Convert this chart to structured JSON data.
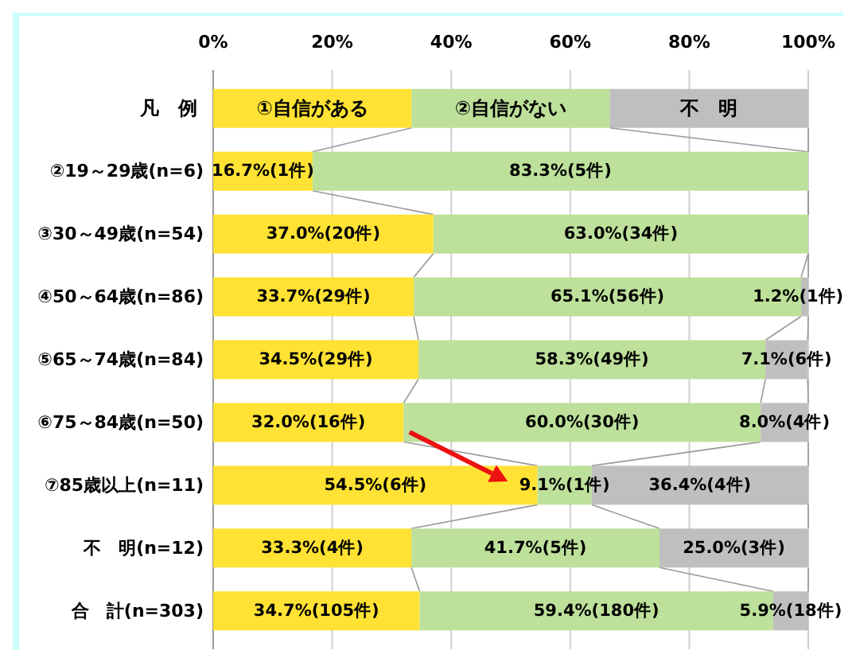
{
  "chart_data": {
    "type": "bar",
    "orientation": "horizontal",
    "stacked": true,
    "legend": "top",
    "legend_title": "凡　例",
    "grid": "x",
    "categories": [
      "②19～29歳(n=6)",
      "③30～49歳(n=54)",
      "④50～64歳(n=86)",
      "⑤65～74歳(n=84)",
      "⑥75～84歳(n=50)",
      "⑦85歳以上(n=11)",
      "不　明(n=12)",
      "合　計(n=303)"
    ],
    "xlim": [
      0,
      100
    ],
    "xticks": [
      {
        "value": 0,
        "label": "0%"
      },
      {
        "value": 20,
        "label": "20%"
      },
      {
        "value": 40,
        "label": "40%"
      },
      {
        "value": 60,
        "label": "60%"
      },
      {
        "value": 80,
        "label": "80%"
      },
      {
        "value": 100,
        "label": "100%"
      }
    ],
    "series": [
      {
        "name": "①自信がある",
        "color": "#ffe233",
        "values": [
          16.7,
          37.0,
          33.7,
          34.5,
          32.0,
          54.5,
          33.3,
          34.7
        ],
        "value_labels": [
          "16.7%(1件)",
          "37.0%(20件)",
          "33.7%(29件)",
          "34.5%(29件)",
          "32.0%(16件)",
          "54.5%(6件)",
          "33.3%(4件)",
          "34.7%(105件)"
        ]
      },
      {
        "name": "②自信がない",
        "color": "#bde09a",
        "values": [
          83.3,
          63.0,
          65.1,
          58.3,
          60.0,
          9.1,
          41.7,
          59.4
        ],
        "value_labels": [
          "83.3%(5件)",
          "63.0%(34件)",
          "65.1%(56件)",
          "58.3%(49件)",
          "60.0%(30件)",
          "9.1%(1件)",
          "41.7%(5件)",
          "59.4%(180件)"
        ]
      },
      {
        "name": "不　明",
        "color": "#bfbfbf",
        "values": [
          null,
          null,
          1.2,
          7.1,
          8.0,
          36.4,
          25.0,
          5.9
        ],
        "value_labels": [
          null,
          null,
          "1.2%(1件)",
          "7.1%(6件)",
          "8.0%(4件)",
          "36.4%(4件)",
          "25.0%(3件)",
          "5.9%(18件)"
        ]
      }
    ]
  }
}
